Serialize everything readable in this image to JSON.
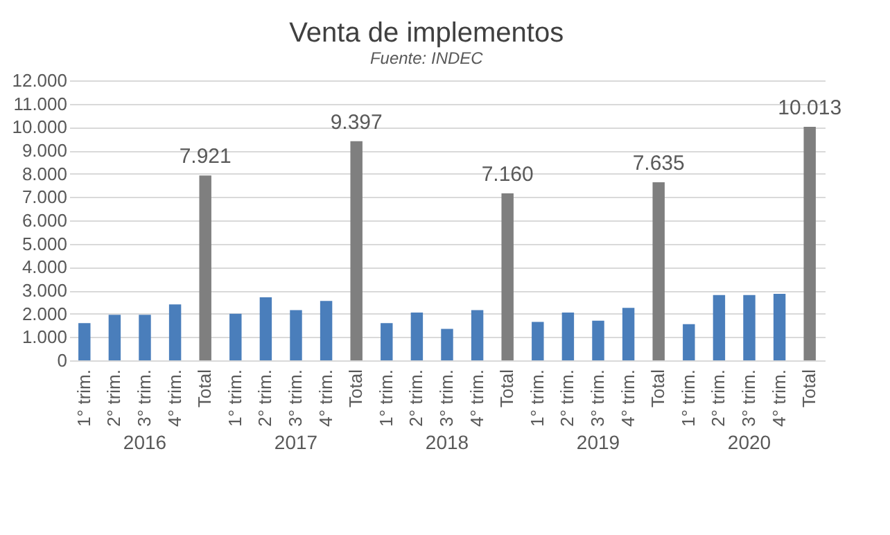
{
  "chart_data": {
    "type": "bar",
    "title": "Venta de implementos",
    "subtitle": "Fuente: INDEC",
    "categories": [
      "1° trim.",
      "2° trim.",
      "3° trim.",
      "4° trim.",
      "Total",
      "1° trim.",
      "2° trim.",
      "3° trim.",
      "4° trim.",
      "Total",
      "1° trim.",
      "2° trim.",
      "3° trim.",
      "4° trim.",
      "Total",
      "1° trim.",
      "2° trim.",
      "3° trim.",
      "4° trim.",
      "Total",
      "1° trim.",
      "2° trim.",
      "3° trim.",
      "4° trim.",
      "Total"
    ],
    "values": [
      1600,
      1950,
      1950,
      2400,
      7921,
      2000,
      2700,
      2150,
      2550,
      9397,
      1600,
      2050,
      1350,
      2150,
      7160,
      1650,
      2050,
      1700,
      2250,
      7635,
      1550,
      2800,
      2800,
      2850,
      10013
    ],
    "colors": [
      "#4a7ebb",
      "#4a7ebb",
      "#4a7ebb",
      "#4a7ebb",
      "#7f7f7f",
      "#4a7ebb",
      "#4a7ebb",
      "#4a7ebb",
      "#4a7ebb",
      "#7f7f7f",
      "#4a7ebb",
      "#4a7ebb",
      "#4a7ebb",
      "#4a7ebb",
      "#7f7f7f",
      "#4a7ebb",
      "#4a7ebb",
      "#4a7ebb",
      "#4a7ebb",
      "#7f7f7f",
      "#4a7ebb",
      "#4a7ebb",
      "#4a7ebb",
      "#4a7ebb",
      "#7f7f7f"
    ],
    "value_labels": [
      null,
      null,
      null,
      null,
      "7.921",
      null,
      null,
      null,
      null,
      "9.397",
      null,
      null,
      null,
      null,
      "7.160",
      null,
      null,
      null,
      null,
      "7.635",
      null,
      null,
      null,
      null,
      "10.013"
    ],
    "annotations": [
      "2016",
      "2017",
      "2018",
      "2019",
      "2020"
    ],
    "ylim": [
      0,
      12000
    ],
    "yticks": [
      {
        "value": 0,
        "label": "0"
      },
      {
        "value": 1000,
        "label": "1.000"
      },
      {
        "value": 2000,
        "label": "2.000"
      },
      {
        "value": 3000,
        "label": "3.000"
      },
      {
        "value": 4000,
        "label": "4.000"
      },
      {
        "value": 5000,
        "label": "5.000"
      },
      {
        "value": 6000,
        "label": "6.000"
      },
      {
        "value": 7000,
        "label": "7.000"
      },
      {
        "value": 8000,
        "label": "8.000"
      },
      {
        "value": 9000,
        "label": "9.000"
      },
      {
        "value": 10000,
        "label": "10.000"
      },
      {
        "value": 11000,
        "label": "11.000"
      },
      {
        "value": 12000,
        "label": "12.000"
      }
    ],
    "grid": "y"
  }
}
